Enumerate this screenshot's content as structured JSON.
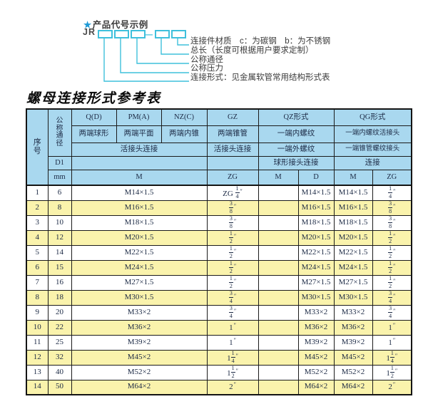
{
  "diagram": {
    "star": "★",
    "heading": "产品代号示例",
    "code_prefix": "JR",
    "dash": "—",
    "labels": [
      "连接件材质　c：为碳钢　b：为不锈钢",
      "总长（长度可根据用户要求定制）",
      "公称通径",
      "公称压力",
      "连接形式：见金属软管常用结构形式表"
    ]
  },
  "table": {
    "title": "螺母连接形式参考表",
    "header": {
      "col_no": "序号",
      "col_dn": "公称通径",
      "d1": "D1",
      "mm": "mm",
      "q": "Q(D)",
      "pm": "PM(A)",
      "nz": "NZ(C)",
      "gz": "GZ",
      "qz": "QZ形式",
      "qg": "QG形式",
      "q_sub": "两端球形",
      "pm_sub": "两端平面",
      "nz_sub": "两端内锥",
      "gz_sub": "两端锥管",
      "qz_sub1": "一端内螺纹",
      "qg_sub1": "一端内螺纹活接头",
      "union_conn": "活接头连接",
      "gz_conn": "活接头连接",
      "qz_sub2": "一端外螺纹",
      "qg_sub2": "一端锥管螺纹接头",
      "qz_conn": "球形接头连接",
      "qg_conn": "连接",
      "m_label": "M",
      "zg_label": "ZG",
      "qz_m_label": "M",
      "qz_d_label": "D",
      "qg_m_label": "M",
      "qg_zg_label": "ZG"
    },
    "rows": [
      {
        "no": "1",
        "dn": "6",
        "m": "M14×1.5",
        "gz": "ZG [1/4]″",
        "qz_m": "",
        "qz_d": "M14×1.5",
        "qg_m": "M14×1.5",
        "qg_zg": "[1/4]″"
      },
      {
        "no": "2",
        "dn": "8",
        "m": "M16×1.5",
        "gz": "[3/8]″",
        "qz_m": "",
        "qz_d": "M16×1.5",
        "qg_m": "M16×1.5",
        "qg_zg": "[3/8]″"
      },
      {
        "no": "3",
        "dn": "10",
        "m": "M18×1.5",
        "gz": "[3/8]″",
        "qz_m": "",
        "qz_d": "M18×1.5",
        "qg_m": "M18×1.5",
        "qg_zg": "[3/8]″"
      },
      {
        "no": "4",
        "dn": "12",
        "m": "M20×1.5",
        "gz": "[1/2]″",
        "qz_m": "",
        "qz_d": "M20×1.5",
        "qg_m": "M20×1.5",
        "qg_zg": "[1/2]″"
      },
      {
        "no": "5",
        "dn": "14",
        "m": "M22×1.5",
        "gz": "[1/2]″",
        "qz_m": "",
        "qz_d": "M22×1.5",
        "qg_m": "M22×1.5",
        "qg_zg": "[1/2]″"
      },
      {
        "no": "6",
        "dn": "15",
        "m": "M24×1.5",
        "gz": "[1/2]″",
        "qz_m": "",
        "qz_d": "M24×1.5",
        "qg_m": "M24×1.5",
        "qg_zg": "[1/2]″"
      },
      {
        "no": "7",
        "dn": "16",
        "m": "M27×1.5",
        "gz": "[1/2]″",
        "qz_m": "",
        "qz_d": "M27×1.5",
        "qg_m": "M27×1.5",
        "qg_zg": "[1/2]″"
      },
      {
        "no": "8",
        "dn": "18",
        "m": "M30×1.5",
        "gz": "[3/4]″",
        "qz_m": "",
        "qz_d": "M30×1.5",
        "qg_m": "M30×1.5",
        "qg_zg": "[3/4]″"
      },
      {
        "no": "9",
        "dn": "20",
        "m": "M33×2",
        "gz": "[3/4]″",
        "qz_m": "",
        "qz_d": "M33×2",
        "qg_m": "M33×2",
        "qg_zg": "[3/4]″"
      },
      {
        "no": "10",
        "dn": "22",
        "m": "M36×2",
        "gz": "1″",
        "qz_m": "",
        "qz_d": "M36×2",
        "qg_m": "M36×2",
        "qg_zg": "1″"
      },
      {
        "no": "11",
        "dn": "25",
        "m": "M39×2",
        "gz": "1″",
        "qz_m": "",
        "qz_d": "M39×2",
        "qg_m": "M39×2",
        "qg_zg": "1″"
      },
      {
        "no": "12",
        "dn": "32",
        "m": "M45×2",
        "gz": "1[1/4]″",
        "qz_m": "",
        "qz_d": "M45×2",
        "qg_m": "M45×2",
        "qg_zg": "1[1/4]″"
      },
      {
        "no": "13",
        "dn": "40",
        "m": "M52×2",
        "gz": "1[1/2]″",
        "qz_m": "",
        "qz_d": "M52×2",
        "qg_m": "M52×2",
        "qg_zg": "1[1/2]″"
      },
      {
        "no": "14",
        "dn": "50",
        "m": "M64×2",
        "gz": "2″",
        "qz_m": "",
        "qz_d": "M64×2",
        "qg_m": "M64×2",
        "qg_zg": "2″"
      }
    ]
  },
  "colors": {
    "header_blue": "#A9D8EF",
    "row_yellow": "#FAF3AC",
    "diagram_cyan": "#3FC0DC",
    "star_blue": "#1E9AD6",
    "border_dark": "#141414",
    "table_text": "#1c2a45"
  }
}
